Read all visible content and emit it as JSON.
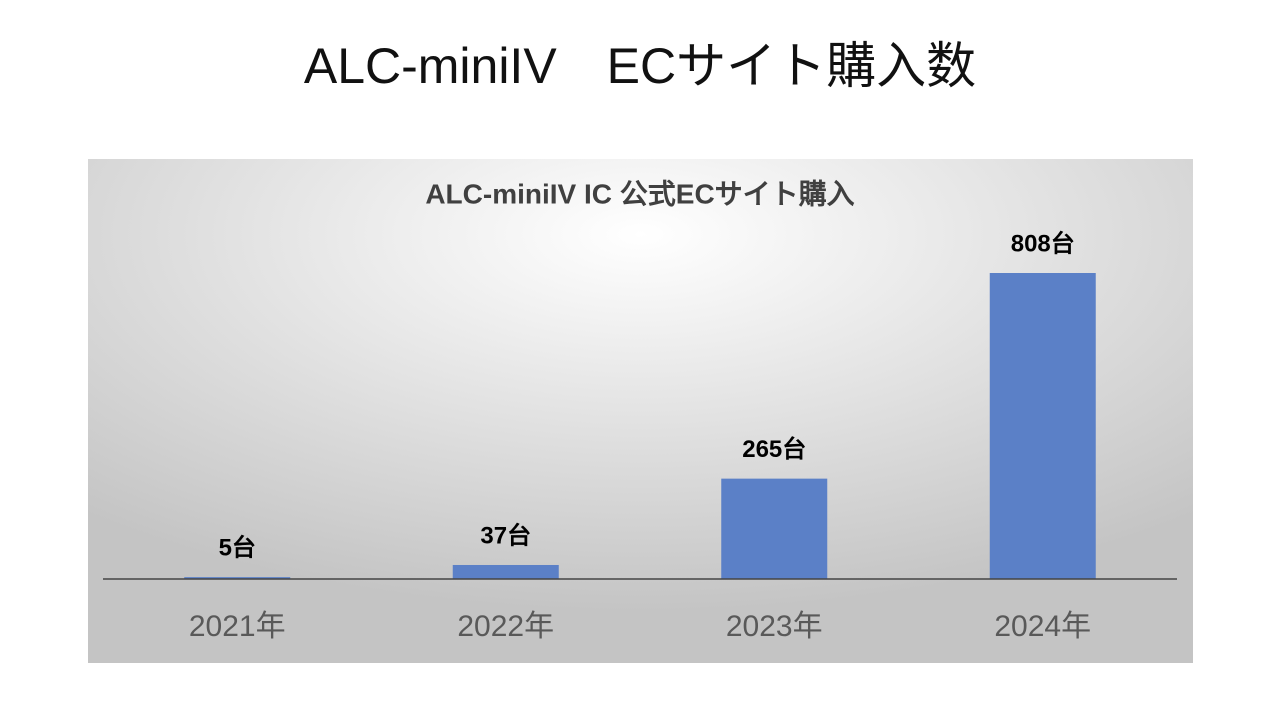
{
  "page_title": "ALC-miniIV　ECサイト購入数",
  "chart_data": {
    "type": "bar",
    "title": "ALC-miniIV IC  公式ECサイト購入",
    "categories": [
      "2021年",
      "2022年",
      "2023年",
      "2024年"
    ],
    "values": [
      5,
      37,
      265,
      808
    ],
    "value_labels": [
      "5台",
      "37台",
      "265台",
      "808台"
    ],
    "color": "#5b80c7"
  }
}
